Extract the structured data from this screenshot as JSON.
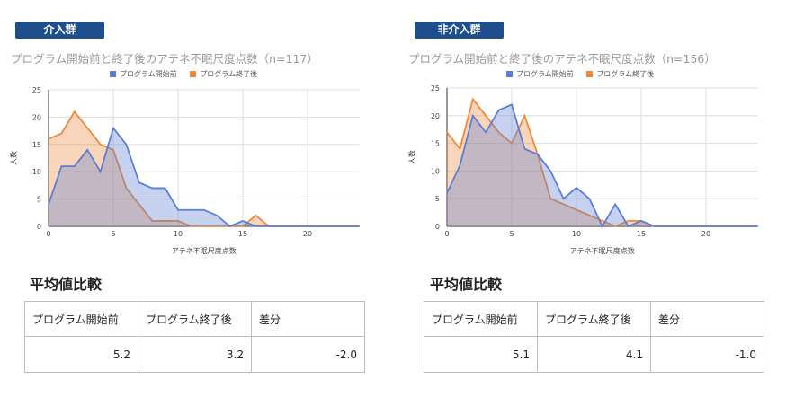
{
  "colors": {
    "before": "#5b7fd1",
    "after": "#ef8a3d",
    "badge": "#1f4e8c",
    "grid": "#dddddd"
  },
  "panels": [
    {
      "badge": "介入群",
      "section_title": "平均値比較",
      "table": {
        "headers": [
          "プログラム開始前",
          "プログラム終了後",
          "差分"
        ],
        "values": [
          "5.2",
          "3.2",
          "-2.0"
        ]
      }
    },
    {
      "badge": "非介入群",
      "section_title": "平均値比較",
      "table": {
        "headers": [
          "プログラム開始前",
          "プログラム終了後",
          "差分"
        ],
        "values": [
          "5.1",
          "4.1",
          "-1.0"
        ]
      }
    }
  ],
  "chart_data": [
    {
      "type": "area",
      "title": "プログラム開始前と終了後のアテネ不眠尺度点数（n=117）",
      "xlabel": "アテネ不眠尺度点数",
      "ylabel": "人数",
      "xlim": [
        0,
        24
      ],
      "ylim": [
        0,
        25
      ],
      "xticks": [
        0,
        5,
        10,
        15,
        20
      ],
      "yticks": [
        0,
        5,
        10,
        15,
        20,
        25
      ],
      "grid": true,
      "legend": "top",
      "x": [
        0,
        1,
        2,
        3,
        4,
        5,
        6,
        7,
        8,
        9,
        10,
        11,
        12,
        13,
        14,
        15,
        16,
        17,
        18,
        19,
        20,
        21,
        22,
        23,
        24
      ],
      "series": [
        {
          "name": "プログラム開始前",
          "values": [
            4,
            11,
            11,
            14,
            10,
            18,
            15,
            8,
            7,
            7,
            3,
            3,
            3,
            2,
            0,
            1,
            0,
            0,
            0,
            0,
            0,
            0,
            0,
            0,
            0
          ]
        },
        {
          "name": "プログラム終了後",
          "values": [
            16,
            17,
            21,
            18,
            15,
            14,
            7,
            4,
            1,
            1,
            1,
            0,
            0,
            0,
            0,
            0,
            2,
            0,
            0,
            0,
            0,
            0,
            0,
            0,
            0
          ]
        }
      ]
    },
    {
      "type": "area",
      "title": "プログラム開始前と終了後のアテネ不眠尺度点数（n=156）",
      "xlabel": "アテネ不眠尺度点数",
      "ylabel": "人数",
      "xlim": [
        0,
        24
      ],
      "ylim": [
        0,
        25
      ],
      "xticks": [
        0,
        5,
        10,
        15,
        20
      ],
      "yticks": [
        0,
        5,
        10,
        15,
        20,
        25
      ],
      "grid": true,
      "legend": "top",
      "x": [
        0,
        1,
        2,
        3,
        4,
        5,
        6,
        7,
        8,
        9,
        10,
        11,
        12,
        13,
        14,
        15,
        16,
        17,
        18,
        19,
        20,
        21,
        22,
        23,
        24
      ],
      "series": [
        {
          "name": "プログラム開始前",
          "values": [
            6,
            11,
            20,
            17,
            21,
            22,
            14,
            13,
            10,
            5,
            7,
            5,
            0,
            4,
            0,
            1,
            0,
            0,
            0,
            0,
            0,
            0,
            0,
            0,
            0
          ]
        },
        {
          "name": "プログラム終了後",
          "values": [
            17,
            14,
            23,
            20,
            17,
            15,
            20,
            13,
            5,
            4,
            3,
            2,
            1,
            0,
            1,
            1,
            0,
            0,
            0,
            0,
            0,
            0,
            0,
            0,
            0
          ]
        }
      ]
    }
  ]
}
